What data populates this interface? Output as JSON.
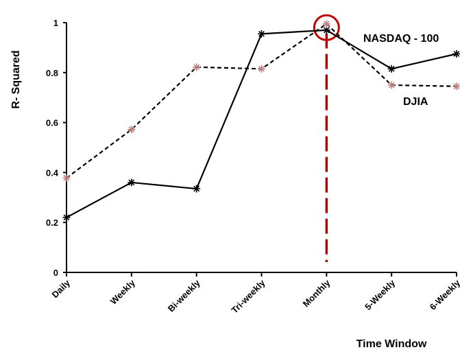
{
  "chart_data": {
    "type": "line",
    "xlabel": "Time Window",
    "ylabel": "R- Squared",
    "categories": [
      "Daily",
      "Weekly",
      "Bi-weekly",
      "Tri-weekly",
      "Monthly",
      "5-Weekly",
      "6-Weekly"
    ],
    "ylim": [
      0,
      1
    ],
    "yticks": [
      "0",
      "0.2",
      "0.4",
      "0.6",
      "0.8",
      "1"
    ],
    "grid": false,
    "series": [
      {
        "name": "NASDAQ - 100",
        "values": [
          0.22,
          0.36,
          0.335,
          0.955,
          0.97,
          0.815,
          0.875
        ],
        "line_style": "solid",
        "line_color": "#000000",
        "marker": "asterisk",
        "marker_color": "#000000"
      },
      {
        "name": "DJIA",
        "values": [
          0.378,
          0.572,
          0.822,
          0.815,
          0.995,
          0.75,
          0.745
        ],
        "line_style": "dashed",
        "line_color": "#000000",
        "marker": "asterisk",
        "marker_color": "#c08080"
      }
    ],
    "annotations": {
      "highlight_category": "Monthly",
      "highlight_color": "#c00000"
    }
  }
}
